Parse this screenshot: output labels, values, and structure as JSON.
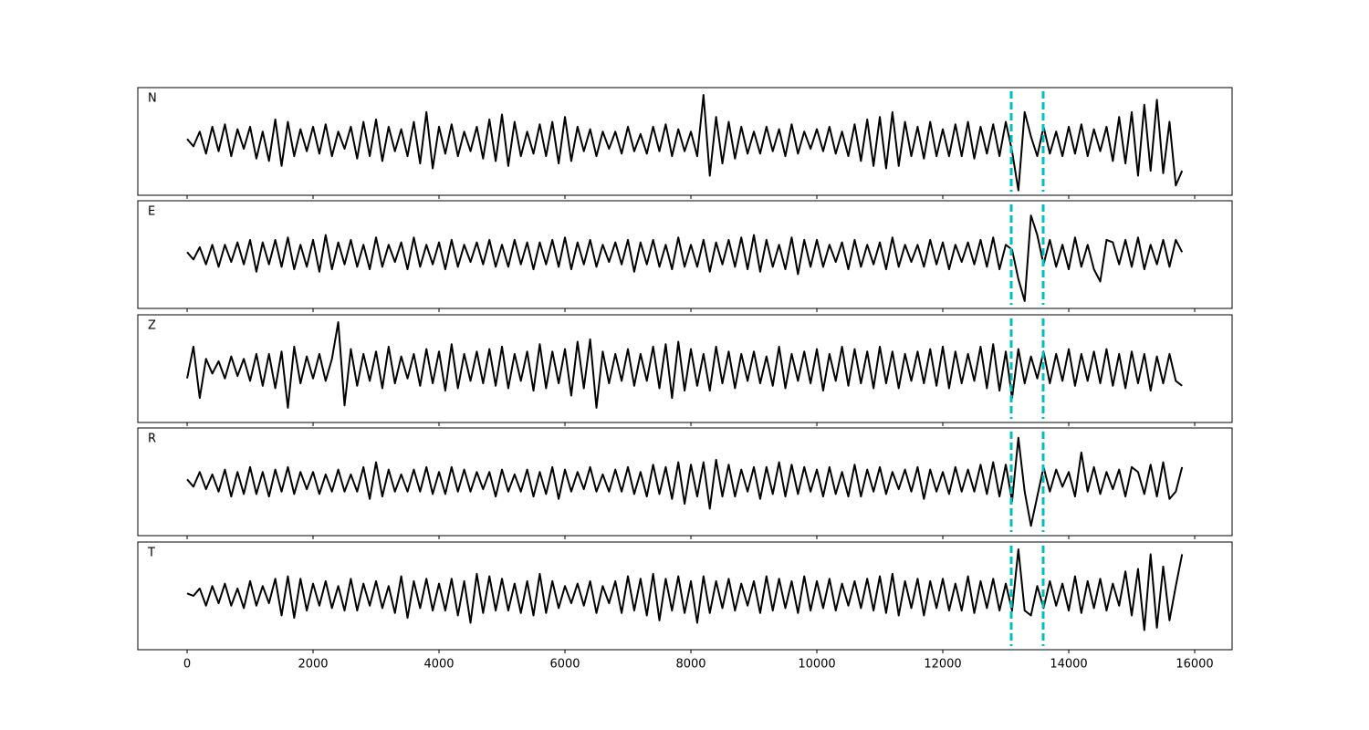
{
  "chart_data": {
    "type": "line",
    "layout": "stacked",
    "xlim": [
      -783,
      16594
    ],
    "xticks": [
      0,
      2000,
      4000,
      6000,
      8000,
      10000,
      12000,
      14000,
      16000
    ],
    "ylim": [
      -1.1,
      1.1
    ],
    "vlines": [
      13087,
      13594
    ],
    "vline_color": "#00bfbf",
    "x": [
      0,
      100,
      200,
      300,
      400,
      500,
      600,
      700,
      800,
      900,
      1000,
      1100,
      1200,
      1300,
      1400,
      1500,
      1600,
      1700,
      1800,
      1900,
      2000,
      2100,
      2200,
      2300,
      2400,
      2500,
      2600,
      2700,
      2800,
      2900,
      3000,
      3100,
      3200,
      3300,
      3400,
      3500,
      3600,
      3700,
      3800,
      3900,
      4000,
      4100,
      4200,
      4300,
      4400,
      4500,
      4600,
      4700,
      4800,
      4900,
      5000,
      5100,
      5200,
      5300,
      5400,
      5500,
      5600,
      5700,
      5800,
      5900,
      6000,
      6100,
      6200,
      6300,
      6400,
      6500,
      6600,
      6700,
      6800,
      6900,
      7000,
      7100,
      7200,
      7300,
      7400,
      7500,
      7600,
      7700,
      7800,
      7900,
      8000,
      8100,
      8200,
      8300,
      8400,
      8500,
      8600,
      8700,
      8800,
      8900,
      9000,
      9100,
      9200,
      9300,
      9400,
      9500,
      9600,
      9700,
      9800,
      9900,
      10000,
      10100,
      10200,
      10300,
      10400,
      10500,
      10600,
      10700,
      10800,
      10900,
      11000,
      11100,
      11200,
      11300,
      11400,
      11500,
      11600,
      11700,
      11800,
      11900,
      12000,
      12100,
      12200,
      12300,
      12400,
      12500,
      12600,
      12700,
      12800,
      12900,
      13000,
      13100,
      13200,
      13300,
      13400,
      13500,
      13600,
      13700,
      13800,
      13900,
      14000,
      14100,
      14200,
      14300,
      14400,
      14500,
      14600,
      14700,
      14800,
      14900,
      15000,
      15100,
      15200,
      15300,
      15400,
      15500,
      15600,
      15700,
      15800
    ],
    "series": [
      {
        "name": "N",
        "color": "#000000",
        "values": [
          0.05,
          -0.1,
          0.2,
          -0.25,
          0.3,
          -0.2,
          0.35,
          -0.3,
          0.25,
          -0.15,
          0.3,
          -0.35,
          0.2,
          -0.4,
          0.45,
          -0.5,
          0.4,
          -0.3,
          0.25,
          -0.2,
          0.3,
          -0.25,
          0.35,
          -0.3,
          0.2,
          -0.15,
          0.3,
          -0.35,
          0.4,
          -0.3,
          0.45,
          -0.4,
          0.3,
          -0.2,
          0.25,
          -0.3,
          0.4,
          -0.45,
          0.6,
          -0.55,
          0.3,
          -0.25,
          0.35,
          -0.3,
          0.2,
          -0.2,
          0.3,
          -0.35,
          0.45,
          -0.4,
          0.55,
          -0.5,
          0.4,
          -0.3,
          0.2,
          -0.25,
          0.35,
          -0.3,
          0.4,
          -0.45,
          0.5,
          -0.4,
          0.3,
          -0.2,
          0.25,
          -0.3,
          0.2,
          -0.15,
          0.2,
          -0.25,
          0.3,
          -0.2,
          0.15,
          -0.25,
          0.3,
          -0.2,
          0.35,
          -0.3,
          0.25,
          -0.2,
          0.2,
          -0.3,
          0.95,
          -0.7,
          0.5,
          -0.45,
          0.4,
          -0.35,
          0.3,
          -0.25,
          0.2,
          -0.25,
          0.3,
          -0.2,
          0.25,
          -0.3,
          0.35,
          -0.25,
          0.2,
          -0.15,
          0.25,
          -0.2,
          0.3,
          -0.25,
          0.2,
          -0.3,
          0.35,
          -0.4,
          0.45,
          -0.5,
          0.5,
          -0.55,
          0.6,
          -0.5,
          0.4,
          -0.3,
          0.3,
          -0.35,
          0.4,
          -0.3,
          0.25,
          -0.3,
          0.35,
          -0.3,
          0.4,
          -0.35,
          0.3,
          -0.25,
          0.35,
          -0.3,
          0.4,
          -0.2,
          -1.0,
          0.6,
          0.1,
          -0.3,
          0.3,
          -0.25,
          0.2,
          -0.3,
          0.3,
          -0.25,
          0.35,
          -0.3,
          0.25,
          -0.2,
          0.3,
          -0.4,
          0.5,
          -0.45,
          0.6,
          -0.7,
          0.75,
          -0.6,
          0.85,
          -0.65,
          0.4,
          -0.9,
          -0.6
        ]
      },
      {
        "name": "E",
        "color": "#000000",
        "values": [
          0.05,
          -0.1,
          0.15,
          -0.2,
          0.2,
          -0.25,
          0.2,
          -0.15,
          0.25,
          -0.2,
          0.3,
          -0.35,
          0.25,
          -0.2,
          0.3,
          -0.25,
          0.35,
          -0.3,
          0.2,
          -0.25,
          0.3,
          -0.35,
          0.4,
          -0.3,
          0.25,
          -0.2,
          0.3,
          -0.25,
          0.2,
          -0.3,
          0.35,
          -0.25,
          0.2,
          -0.15,
          0.25,
          -0.3,
          0.35,
          -0.25,
          0.2,
          -0.2,
          0.25,
          -0.3,
          0.3,
          -0.25,
          0.2,
          -0.15,
          0.25,
          -0.2,
          0.3,
          -0.25,
          0.2,
          -0.25,
          0.3,
          -0.2,
          0.25,
          -0.3,
          0.25,
          -0.2,
          0.3,
          -0.25,
          0.35,
          -0.3,
          0.25,
          -0.2,
          0.3,
          -0.25,
          0.2,
          -0.15,
          0.25,
          -0.2,
          0.3,
          -0.35,
          0.25,
          -0.2,
          0.3,
          -0.25,
          0.2,
          -0.3,
          0.35,
          -0.25,
          0.2,
          -0.25,
          0.3,
          -0.35,
          0.25,
          -0.2,
          0.3,
          -0.25,
          0.35,
          -0.3,
          0.4,
          -0.35,
          0.3,
          -0.25,
          0.2,
          -0.3,
          0.35,
          -0.4,
          0.3,
          -0.25,
          0.3,
          -0.25,
          0.2,
          -0.15,
          0.25,
          -0.3,
          0.3,
          -0.25,
          0.2,
          -0.2,
          0.25,
          -0.3,
          0.35,
          -0.25,
          0.2,
          -0.15,
          0.2,
          -0.25,
          0.3,
          -0.2,
          0.25,
          -0.3,
          0.2,
          -0.15,
          0.25,
          -0.2,
          0.3,
          -0.25,
          0.35,
          -0.3,
          0.2,
          0.1,
          -0.5,
          -0.95,
          0.8,
          0.4,
          -0.2,
          0.3,
          -0.25,
          0.2,
          -0.3,
          0.35,
          -0.25,
          0.2,
          -0.3,
          -0.55,
          0.3,
          0.25,
          -0.2,
          0.3,
          -0.25,
          0.35,
          -0.3,
          0.2,
          -0.2,
          0.3,
          -0.25,
          0.3,
          0.05
        ]
      },
      {
        "name": "Z",
        "color": "#000000",
        "values": [
          -0.2,
          0.45,
          -0.6,
          0.2,
          -0.1,
          0.15,
          -0.2,
          0.25,
          -0.15,
          0.2,
          -0.25,
          0.3,
          -0.35,
          0.3,
          -0.4,
          0.35,
          -0.8,
          0.45,
          -0.3,
          0.25,
          -0.2,
          0.3,
          -0.25,
          0.2,
          0.95,
          -0.75,
          0.4,
          -0.35,
          0.3,
          -0.25,
          0.35,
          -0.4,
          0.45,
          -0.3,
          0.25,
          -0.2,
          0.3,
          -0.35,
          0.4,
          -0.3,
          0.35,
          -0.45,
          0.5,
          -0.4,
          0.3,
          -0.25,
          0.35,
          -0.3,
          0.4,
          -0.35,
          0.45,
          -0.4,
          0.3,
          -0.25,
          0.35,
          -0.45,
          0.5,
          -0.4,
          0.35,
          -0.3,
          0.4,
          -0.55,
          0.55,
          -0.4,
          0.6,
          -0.8,
          0.35,
          -0.3,
          0.3,
          -0.25,
          0.4,
          -0.35,
          0.3,
          -0.25,
          0.45,
          -0.4,
          0.5,
          -0.6,
          0.55,
          -0.45,
          0.4,
          -0.35,
          0.3,
          -0.45,
          0.45,
          -0.3,
          0.35,
          -0.4,
          0.3,
          -0.25,
          0.35,
          -0.3,
          0.25,
          -0.35,
          0.45,
          -0.4,
          0.3,
          -0.25,
          0.35,
          -0.3,
          0.4,
          -0.45,
          0.3,
          -0.25,
          0.45,
          -0.35,
          0.4,
          -0.3,
          0.35,
          -0.4,
          0.45,
          -0.3,
          0.35,
          -0.4,
          0.3,
          -0.25,
          0.35,
          -0.3,
          0.4,
          -0.35,
          0.45,
          -0.4,
          0.35,
          -0.3,
          0.3,
          -0.25,
          0.45,
          -0.4,
          0.5,
          -0.45,
          0.35,
          -0.6,
          0.4,
          -0.3,
          0.25,
          -0.2,
          0.35,
          -0.3,
          0.3,
          -0.25,
          0.4,
          -0.35,
          0.3,
          -0.25,
          0.35,
          -0.3,
          0.4,
          -0.35,
          0.3,
          -0.4,
          0.35,
          -0.3,
          0.3,
          -0.45,
          0.25,
          -0.3,
          0.3,
          -0.25,
          -0.35
        ]
      },
      {
        "name": "R",
        "color": "#000000",
        "values": [
          0.05,
          -0.1,
          0.2,
          -0.15,
          0.15,
          -0.2,
          0.25,
          -0.3,
          0.2,
          -0.25,
          0.3,
          -0.25,
          0.2,
          -0.3,
          0.25,
          -0.2,
          0.3,
          -0.25,
          0.2,
          -0.15,
          0.2,
          -0.25,
          0.15,
          -0.2,
          0.25,
          -0.2,
          0.15,
          -0.2,
          0.3,
          -0.35,
          0.4,
          -0.3,
          0.25,
          -0.2,
          0.15,
          -0.2,
          0.25,
          -0.2,
          0.3,
          -0.25,
          0.2,
          -0.25,
          0.3,
          -0.2,
          0.25,
          -0.2,
          0.2,
          -0.15,
          0.2,
          -0.3,
          0.25,
          -0.2,
          0.15,
          -0.2,
          0.25,
          -0.3,
          0.2,
          -0.25,
          0.3,
          -0.35,
          0.25,
          -0.2,
          0.2,
          -0.15,
          0.3,
          -0.2,
          0.15,
          -0.2,
          0.25,
          -0.2,
          0.3,
          -0.25,
          0.2,
          -0.3,
          0.35,
          -0.25,
          0.3,
          -0.35,
          0.4,
          -0.45,
          0.35,
          -0.3,
          0.4,
          -0.55,
          0.45,
          -0.3,
          0.35,
          -0.3,
          0.25,
          -0.2,
          0.3,
          -0.35,
          0.3,
          -0.25,
          0.4,
          -0.3,
          0.35,
          -0.25,
          0.3,
          -0.2,
          0.25,
          -0.3,
          0.3,
          -0.25,
          0.2,
          -0.3,
          0.35,
          -0.3,
          0.25,
          -0.2,
          0.3,
          -0.25,
          0.2,
          -0.15,
          0.25,
          -0.2,
          0.3,
          -0.35,
          0.25,
          -0.2,
          0.2,
          -0.25,
          0.3,
          -0.2,
          0.25,
          -0.2,
          0.35,
          -0.25,
          0.4,
          -0.3,
          0.35,
          -0.4,
          0.9,
          -0.2,
          -0.9,
          -0.3,
          0.3,
          -0.2,
          0.25,
          -0.1,
          0.2,
          -0.3,
          0.6,
          -0.2,
          0.3,
          -0.25,
          0.2,
          -0.15,
          0.25,
          -0.3,
          0.3,
          0.2,
          -0.25,
          0.35,
          -0.3,
          0.4,
          -0.35,
          -0.2,
          0.3
        ]
      },
      {
        "name": "T",
        "color": "#000000",
        "values": [
          0.05,
          0.0,
          0.15,
          -0.2,
          0.2,
          -0.15,
          0.25,
          -0.2,
          0.15,
          -0.25,
          0.3,
          -0.2,
          0.2,
          -0.15,
          0.35,
          -0.4,
          0.4,
          -0.45,
          0.35,
          -0.3,
          0.25,
          -0.2,
          0.3,
          -0.25,
          0.2,
          -0.3,
          0.35,
          -0.3,
          0.25,
          -0.2,
          0.3,
          -0.25,
          0.2,
          -0.35,
          0.4,
          -0.45,
          0.3,
          -0.25,
          0.35,
          -0.3,
          0.25,
          -0.3,
          0.35,
          -0.4,
          0.3,
          -0.55,
          0.45,
          -0.35,
          0.4,
          -0.3,
          0.35,
          -0.3,
          0.25,
          -0.35,
          0.3,
          -0.4,
          0.45,
          -0.35,
          0.3,
          -0.25,
          0.2,
          -0.15,
          0.25,
          -0.2,
          0.3,
          -0.35,
          0.2,
          -0.15,
          0.3,
          -0.35,
          0.4,
          -0.3,
          0.35,
          -0.4,
          0.45,
          -0.5,
          0.35,
          -0.3,
          0.4,
          -0.35,
          0.3,
          -0.55,
          0.4,
          -0.35,
          0.3,
          -0.25,
          0.35,
          -0.3,
          0.25,
          -0.2,
          0.3,
          -0.35,
          0.4,
          -0.3,
          0.35,
          -0.25,
          0.3,
          -0.35,
          0.4,
          -0.3,
          0.3,
          -0.25,
          0.35,
          -0.3,
          0.25,
          -0.2,
          0.3,
          -0.25,
          0.35,
          -0.3,
          0.4,
          -0.35,
          0.45,
          -0.4,
          0.3,
          -0.25,
          0.35,
          -0.4,
          0.3,
          -0.25,
          0.35,
          -0.3,
          0.25,
          -0.3,
          0.4,
          -0.35,
          0.3,
          -0.25,
          0.35,
          -0.3,
          0.25,
          -0.3,
          0.95,
          -0.3,
          -0.4,
          0.2,
          -0.25,
          0.3,
          -0.2,
          0.25,
          -0.3,
          0.4,
          -0.35,
          0.3,
          -0.25,
          0.35,
          -0.3,
          0.25,
          -0.2,
          0.5,
          -0.4,
          0.55,
          -0.7,
          0.85,
          -0.65,
          0.6,
          -0.5,
          0.2,
          0.85
        ]
      }
    ]
  }
}
